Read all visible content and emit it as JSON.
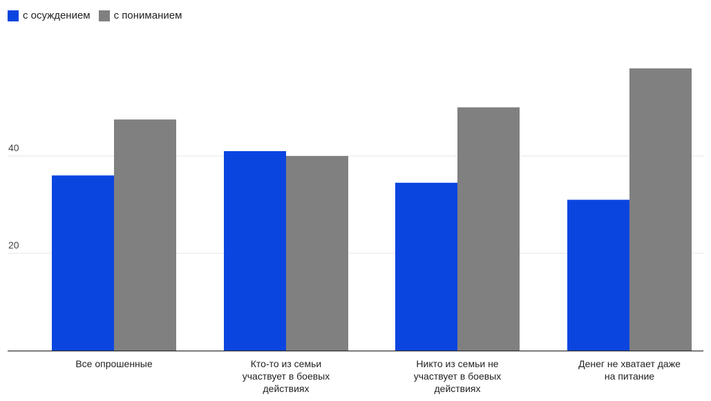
{
  "chart_data": {
    "type": "bar",
    "categories": [
      "Все опрошенные",
      "Кто-то из семьи участвует в боевых действиях",
      "Никто из семьи не участвует в боевых действиях",
      "Денег не хватает даже на питание"
    ],
    "category_lines": [
      [
        "Все опрошенные"
      ],
      [
        "Кто-то из семьи",
        "участвует в боевых",
        "действиях"
      ],
      [
        "Никто из семьи не",
        "участвует в боевых",
        "действиях"
      ],
      [
        "Денег не хватает даже",
        "на питание"
      ]
    ],
    "series": [
      {
        "name": "с осуждением",
        "color": "#0b45e0",
        "values": [
          36,
          41,
          34.5,
          31
        ]
      },
      {
        "name": "с пониманием",
        "color": "#808080",
        "values": [
          47.5,
          40,
          50,
          58
        ]
      }
    ],
    "yticks": [
      20,
      40
    ],
    "ylim": [
      0,
      60
    ],
    "grid": true,
    "legend_position": "top-left",
    "title": "",
    "xlabel": "",
    "ylabel": ""
  }
}
